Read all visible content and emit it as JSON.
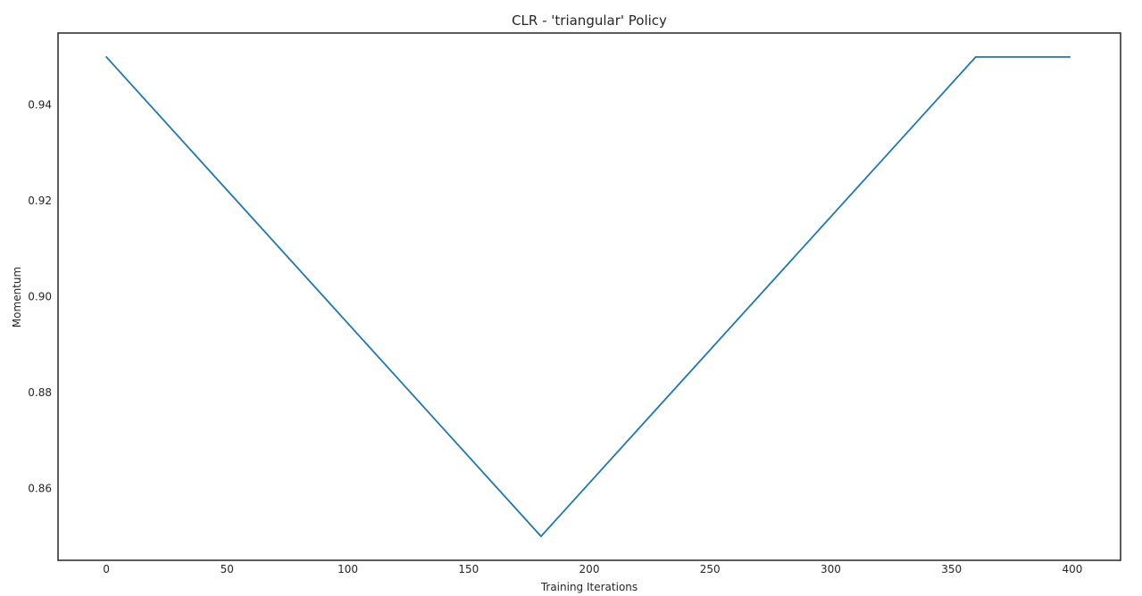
{
  "chart_data": {
    "type": "line",
    "title": "CLR - 'triangular' Policy",
    "xlabel": "Training Iterations",
    "ylabel": "Momentum",
    "xlim": [
      -20,
      420
    ],
    "ylim": [
      0.845,
      0.955
    ],
    "x_ticks": [
      0,
      50,
      100,
      150,
      200,
      250,
      300,
      350,
      400
    ],
    "y_ticks": [
      0.86,
      0.88,
      0.9,
      0.92,
      0.94
    ],
    "x_tick_labels": [
      "0",
      "50",
      "100",
      "150",
      "200",
      "250",
      "300",
      "350",
      "400"
    ],
    "y_tick_labels": [
      "0.86",
      "0.88",
      "0.90",
      "0.92",
      "0.94"
    ],
    "grid": false,
    "series": [
      {
        "color": "#1f77b4",
        "x": [
          0,
          180,
          360,
          399
        ],
        "y": [
          0.95,
          0.85,
          0.95,
          0.95
        ]
      }
    ]
  }
}
